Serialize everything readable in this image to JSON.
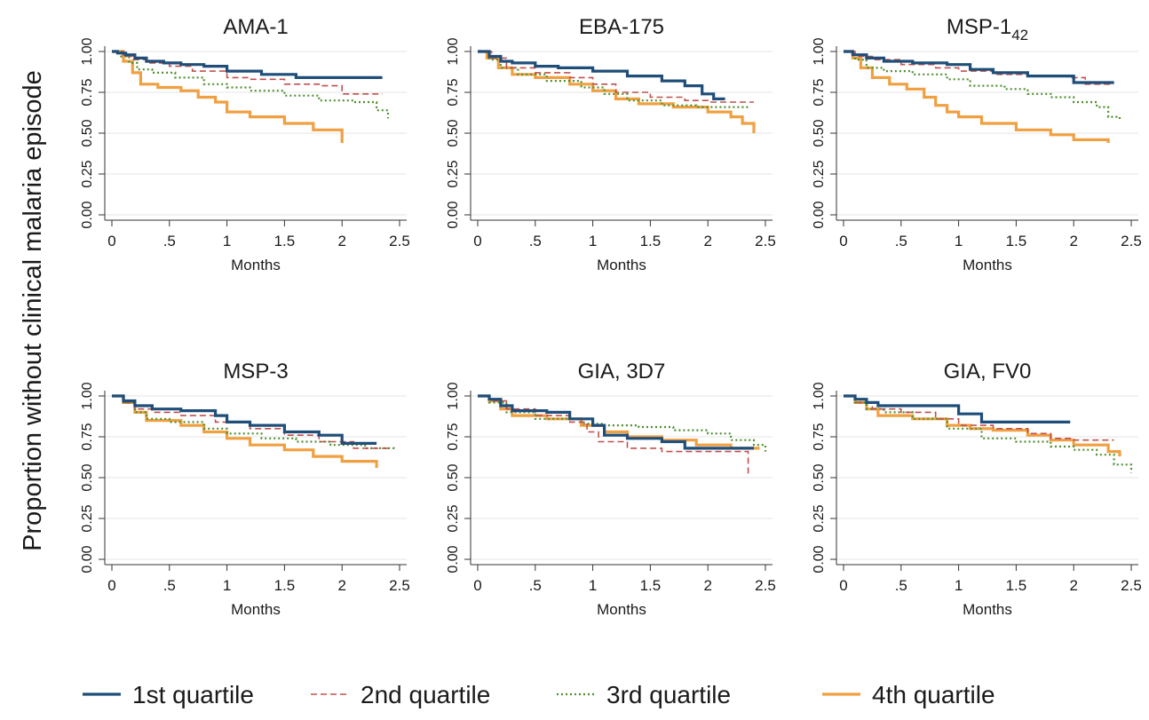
{
  "y_axis_title": "Proportion without clinical malaria episode",
  "legend": [
    {
      "key": "q1",
      "label": "1st quartile",
      "color": "#1f4e79",
      "dash": "solid"
    },
    {
      "key": "q2",
      "label": "2nd quartile",
      "color": "#c0504d",
      "dash": "dashed"
    },
    {
      "key": "q3",
      "label": "3rd quartile",
      "color": "#4f8f2f",
      "dash": "dotted"
    },
    {
      "key": "q4",
      "label": "4th quartile",
      "color": "#f0a040",
      "dash": "solid"
    }
  ],
  "chart_data": [
    {
      "type": "line",
      "title": "AMA-1",
      "xlabel": "Months",
      "ylabel": "",
      "xlim": [
        0,
        2.5
      ],
      "ylim": [
        0,
        1
      ],
      "xticks": [
        "0",
        ".5",
        "1",
        "1.5",
        "2",
        "2.5"
      ],
      "yticks": [
        "0.00",
        "0.25",
        "0.50",
        "0.75",
        "1.00"
      ],
      "grid": true,
      "series": [
        {
          "name": "1st quartile",
          "x": [
            0,
            0.05,
            0.12,
            0.2,
            0.3,
            0.45,
            0.6,
            0.8,
            1.0,
            1.3,
            1.6,
            2.0,
            2.35
          ],
          "y": [
            1.0,
            0.99,
            0.98,
            0.96,
            0.94,
            0.93,
            0.92,
            0.91,
            0.88,
            0.86,
            0.84,
            0.84,
            0.84
          ]
        },
        {
          "name": "2nd quartile",
          "x": [
            0,
            0.1,
            0.18,
            0.3,
            0.5,
            0.7,
            1.0,
            1.2,
            1.5,
            1.8,
            2.0,
            2.35
          ],
          "y": [
            1.0,
            0.97,
            0.95,
            0.93,
            0.91,
            0.88,
            0.84,
            0.83,
            0.8,
            0.79,
            0.74,
            0.74
          ]
        },
        {
          "name": "3rd quartile",
          "x": [
            0,
            0.08,
            0.15,
            0.22,
            0.35,
            0.55,
            0.8,
            1.0,
            1.2,
            1.5,
            1.8,
            2.1,
            2.3,
            2.4
          ],
          "y": [
            1.0,
            0.97,
            0.93,
            0.89,
            0.87,
            0.84,
            0.8,
            0.78,
            0.76,
            0.73,
            0.7,
            0.69,
            0.64,
            0.59
          ]
        },
        {
          "name": "4th quartile",
          "x": [
            0,
            0.1,
            0.18,
            0.25,
            0.4,
            0.6,
            0.75,
            0.9,
            1.0,
            1.2,
            1.5,
            1.75,
            2.0
          ],
          "y": [
            1.0,
            0.94,
            0.87,
            0.8,
            0.78,
            0.76,
            0.72,
            0.69,
            0.63,
            0.6,
            0.56,
            0.52,
            0.44
          ]
        }
      ]
    },
    {
      "type": "line",
      "title": "EBA-175",
      "xlabel": "Months",
      "ylabel": "",
      "xlim": [
        0,
        2.5
      ],
      "ylim": [
        0,
        1
      ],
      "xticks": [
        "0",
        ".5",
        "1",
        "1.5",
        "2",
        "2.5"
      ],
      "yticks": [
        "0.00",
        "0.25",
        "0.50",
        "0.75",
        "1.00"
      ],
      "grid": true,
      "series": [
        {
          "name": "1st quartile",
          "x": [
            0,
            0.1,
            0.2,
            0.3,
            0.5,
            0.7,
            1.0,
            1.3,
            1.6,
            1.8,
            1.95,
            2.05,
            2.15
          ],
          "y": [
            1.0,
            0.97,
            0.94,
            0.93,
            0.91,
            0.9,
            0.88,
            0.85,
            0.82,
            0.79,
            0.74,
            0.71,
            0.71
          ]
        },
        {
          "name": "2nd quartile",
          "x": [
            0,
            0.12,
            0.25,
            0.5,
            0.8,
            1.0,
            1.2,
            1.5,
            1.8,
            2.0,
            2.3,
            2.4
          ],
          "y": [
            1.0,
            0.96,
            0.9,
            0.87,
            0.84,
            0.8,
            0.75,
            0.72,
            0.7,
            0.69,
            0.69,
            0.69
          ]
        },
        {
          "name": "3rd quartile",
          "x": [
            0,
            0.1,
            0.2,
            0.35,
            0.6,
            0.9,
            1.1,
            1.3,
            1.6,
            1.9,
            2.2,
            2.35
          ],
          "y": [
            1.0,
            0.95,
            0.9,
            0.86,
            0.82,
            0.78,
            0.74,
            0.7,
            0.67,
            0.66,
            0.66,
            0.66
          ]
        },
        {
          "name": "4th quartile",
          "x": [
            0,
            0.08,
            0.18,
            0.3,
            0.5,
            0.8,
            1.0,
            1.2,
            1.4,
            1.7,
            2.0,
            2.2,
            2.3,
            2.4
          ],
          "y": [
            1.0,
            0.96,
            0.9,
            0.86,
            0.84,
            0.8,
            0.76,
            0.71,
            0.68,
            0.66,
            0.63,
            0.6,
            0.56,
            0.5
          ]
        }
      ]
    },
    {
      "type": "line",
      "title": "MSP-1",
      "title_subscript": "42",
      "xlabel": "Months",
      "ylabel": "",
      "xlim": [
        0,
        2.5
      ],
      "ylim": [
        0,
        1
      ],
      "xticks": [
        "0",
        ".5",
        "1",
        "1.5",
        "2",
        "2.5"
      ],
      "yticks": [
        "0.00",
        "0.25",
        "0.50",
        "0.75",
        "1.00"
      ],
      "grid": true,
      "series": [
        {
          "name": "1st quartile",
          "x": [
            0,
            0.08,
            0.2,
            0.35,
            0.6,
            0.9,
            1.1,
            1.3,
            1.6,
            1.9,
            2.0,
            2.35
          ],
          "y": [
            1.0,
            0.98,
            0.96,
            0.94,
            0.93,
            0.92,
            0.89,
            0.87,
            0.85,
            0.85,
            0.81,
            0.81
          ]
        },
        {
          "name": "2nd quartile",
          "x": [
            0,
            0.1,
            0.25,
            0.5,
            0.8,
            1.0,
            1.3,
            1.6,
            1.95,
            2.1,
            2.35
          ],
          "y": [
            1.0,
            0.97,
            0.95,
            0.92,
            0.9,
            0.88,
            0.86,
            0.85,
            0.84,
            0.8,
            0.8
          ]
        },
        {
          "name": "3rd quartile",
          "x": [
            0,
            0.1,
            0.2,
            0.35,
            0.6,
            0.9,
            1.1,
            1.4,
            1.6,
            1.8,
            2.0,
            2.2,
            2.3,
            2.4
          ],
          "y": [
            1.0,
            0.95,
            0.9,
            0.88,
            0.86,
            0.83,
            0.79,
            0.77,
            0.74,
            0.72,
            0.69,
            0.66,
            0.6,
            0.58
          ]
        },
        {
          "name": "4th quartile",
          "x": [
            0,
            0.08,
            0.15,
            0.25,
            0.4,
            0.55,
            0.7,
            0.8,
            0.9,
            1.0,
            1.2,
            1.5,
            1.8,
            2.0,
            2.3
          ],
          "y": [
            1.0,
            0.96,
            0.9,
            0.84,
            0.8,
            0.77,
            0.72,
            0.67,
            0.63,
            0.6,
            0.56,
            0.52,
            0.49,
            0.46,
            0.44
          ]
        }
      ]
    },
    {
      "type": "line",
      "title": "MSP-3",
      "xlabel": "Months",
      "ylabel": "",
      "xlim": [
        0,
        2.5
      ],
      "ylim": [
        0,
        1
      ],
      "xticks": [
        "0",
        ".5",
        "1",
        "1.5",
        "2",
        "2.5"
      ],
      "yticks": [
        "0.00",
        "0.25",
        "0.50",
        "0.75",
        "1.00"
      ],
      "grid": true,
      "series": [
        {
          "name": "1st quartile",
          "x": [
            0,
            0.1,
            0.2,
            0.35,
            0.6,
            0.9,
            1.0,
            1.2,
            1.5,
            1.8,
            2.0,
            2.3
          ],
          "y": [
            1.0,
            0.97,
            0.94,
            0.92,
            0.91,
            0.88,
            0.84,
            0.82,
            0.78,
            0.76,
            0.71,
            0.71
          ]
        },
        {
          "name": "2nd quartile",
          "x": [
            0,
            0.1,
            0.2,
            0.35,
            0.6,
            0.9,
            1.2,
            1.5,
            1.8,
            2.1,
            2.4
          ],
          "y": [
            1.0,
            0.96,
            0.92,
            0.9,
            0.88,
            0.84,
            0.8,
            0.76,
            0.72,
            0.68,
            0.66
          ]
        },
        {
          "name": "3rd quartile",
          "x": [
            0,
            0.1,
            0.2,
            0.3,
            0.5,
            0.8,
            1.0,
            1.3,
            1.6,
            1.9,
            2.2,
            2.45
          ],
          "y": [
            1.0,
            0.96,
            0.9,
            0.86,
            0.84,
            0.8,
            0.77,
            0.74,
            0.72,
            0.7,
            0.68,
            0.67
          ]
        },
        {
          "name": "4th quartile",
          "x": [
            0,
            0.1,
            0.2,
            0.3,
            0.6,
            0.8,
            1.0,
            1.2,
            1.5,
            1.75,
            2.0,
            2.3
          ],
          "y": [
            1.0,
            0.96,
            0.9,
            0.85,
            0.82,
            0.78,
            0.74,
            0.7,
            0.67,
            0.63,
            0.6,
            0.56
          ]
        }
      ]
    },
    {
      "type": "line",
      "title": "GIA, 3D7",
      "xlabel": "Months",
      "ylabel": "",
      "xlim": [
        0,
        2.5
      ],
      "ylim": [
        0,
        1
      ],
      "xticks": [
        "0",
        ".5",
        "1",
        "1.5",
        "2",
        "2.5"
      ],
      "yticks": [
        "0.00",
        "0.25",
        "0.50",
        "0.75",
        "1.00"
      ],
      "grid": true,
      "series": [
        {
          "name": "1st quartile",
          "x": [
            0,
            0.1,
            0.2,
            0.3,
            0.6,
            0.8,
            1.0,
            1.1,
            1.3,
            1.6,
            1.8,
            2.1,
            2.4
          ],
          "y": [
            1.0,
            0.98,
            0.94,
            0.91,
            0.9,
            0.86,
            0.82,
            0.76,
            0.74,
            0.72,
            0.68,
            0.68,
            0.68
          ]
        },
        {
          "name": "2nd quartile",
          "x": [
            0,
            0.1,
            0.25,
            0.5,
            0.8,
            0.95,
            1.05,
            1.3,
            1.6,
            2.0,
            2.33,
            2.35
          ],
          "y": [
            1.0,
            0.97,
            0.92,
            0.88,
            0.84,
            0.78,
            0.72,
            0.68,
            0.66,
            0.66,
            0.66,
            0.52
          ]
        },
        {
          "name": "3rd quartile",
          "x": [
            0,
            0.1,
            0.25,
            0.5,
            0.9,
            1.1,
            1.4,
            1.7,
            2.0,
            2.2,
            2.4,
            2.5
          ],
          "y": [
            1.0,
            0.96,
            0.9,
            0.86,
            0.83,
            0.82,
            0.81,
            0.79,
            0.77,
            0.73,
            0.7,
            0.66
          ]
        },
        {
          "name": "4th quartile",
          "x": [
            0,
            0.1,
            0.2,
            0.3,
            0.6,
            0.9,
            1.1,
            1.3,
            1.6,
            1.9,
            2.2,
            2.45
          ],
          "y": [
            1.0,
            0.97,
            0.92,
            0.88,
            0.86,
            0.82,
            0.78,
            0.75,
            0.73,
            0.7,
            0.68,
            0.68
          ]
        }
      ]
    },
    {
      "type": "line",
      "title": "GIA, FV0",
      "xlabel": "Months",
      "ylabel": "",
      "xlim": [
        0,
        2.5
      ],
      "ylim": [
        0,
        1
      ],
      "xticks": [
        "0",
        ".5",
        "1",
        "1.5",
        "2",
        "2.5"
      ],
      "yticks": [
        "0.00",
        "0.25",
        "0.50",
        "0.75",
        "1.00"
      ],
      "grid": true,
      "series": [
        {
          "name": "1st quartile",
          "x": [
            0,
            0.1,
            0.2,
            0.3,
            0.5,
            0.9,
            1.0,
            1.2,
            1.6,
            1.97
          ],
          "y": [
            1.0,
            0.98,
            0.96,
            0.94,
            0.94,
            0.94,
            0.89,
            0.84,
            0.84,
            0.84
          ]
        },
        {
          "name": "2nd quartile",
          "x": [
            0,
            0.1,
            0.25,
            0.5,
            0.8,
            1.0,
            1.3,
            1.6,
            1.8,
            2.0,
            2.35
          ],
          "y": [
            1.0,
            0.96,
            0.92,
            0.9,
            0.86,
            0.82,
            0.8,
            0.77,
            0.74,
            0.73,
            0.73
          ]
        },
        {
          "name": "3rd quartile",
          "x": [
            0,
            0.1,
            0.2,
            0.35,
            0.6,
            0.9,
            1.2,
            1.5,
            1.8,
            2.0,
            2.2,
            2.35,
            2.5
          ],
          "y": [
            1.0,
            0.96,
            0.92,
            0.9,
            0.86,
            0.8,
            0.74,
            0.72,
            0.69,
            0.67,
            0.64,
            0.58,
            0.53
          ]
        },
        {
          "name": "4th quartile",
          "x": [
            0,
            0.1,
            0.2,
            0.3,
            0.6,
            0.9,
            1.1,
            1.3,
            1.6,
            1.8,
            2.0,
            2.3,
            2.4
          ],
          "y": [
            1.0,
            0.96,
            0.92,
            0.88,
            0.86,
            0.82,
            0.8,
            0.79,
            0.76,
            0.73,
            0.7,
            0.66,
            0.63
          ]
        }
      ]
    }
  ]
}
